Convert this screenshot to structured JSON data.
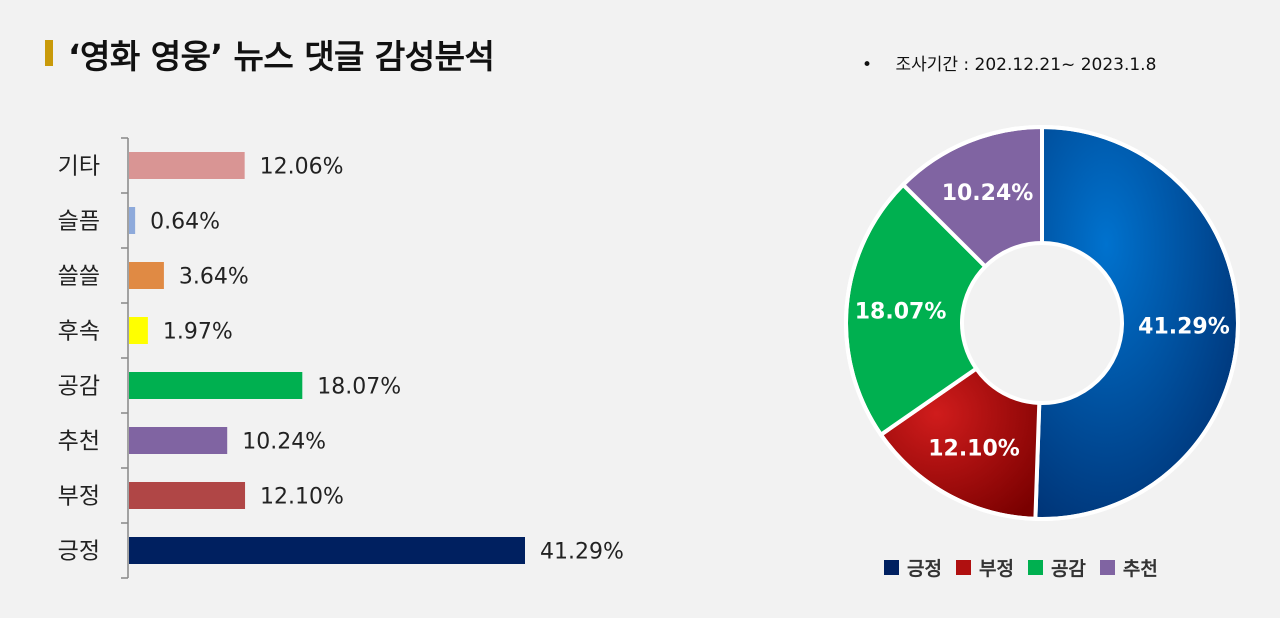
{
  "header": {
    "title": "‘영화 영웅’ 뉴스 댓글 감성분석",
    "period_bullet": "•",
    "period": "조사기간 : 202.12.21~ 2023.1.8"
  },
  "chart_data": [
    {
      "type": "bar",
      "orientation": "horizontal",
      "categories": [
        "기타",
        "슬픔",
        "쓸쓸",
        "후속",
        "공감",
        "추천",
        "부정",
        "긍정"
      ],
      "values": [
        12.06,
        0.64,
        3.64,
        1.97,
        18.07,
        10.24,
        12.1,
        41.29
      ],
      "value_labels": [
        "12.06%",
        "0.64%",
        "3.64%",
        "1.97%",
        "18.07%",
        "10.24%",
        "12.10%",
        "41.29%"
      ],
      "colors": [
        "#d99594",
        "#8eaadb",
        "#e08a44",
        "#ffff00",
        "#00b050",
        "#8064a2",
        "#b04646",
        "#002060"
      ],
      "xlim": [
        0,
        50
      ],
      "grid": false
    },
    {
      "type": "pie",
      "donut": true,
      "categories": [
        "긍정",
        "부정",
        "공감",
        "추천"
      ],
      "values": [
        41.29,
        12.1,
        18.07,
        10.24
      ],
      "value_labels": [
        "41.29%",
        "12.10%",
        "18.07%",
        "10.24%"
      ],
      "colors": [
        "#0a4fa8",
        "#b01010",
        "#00b050",
        "#8064a2"
      ],
      "legend": "bottom"
    }
  ]
}
